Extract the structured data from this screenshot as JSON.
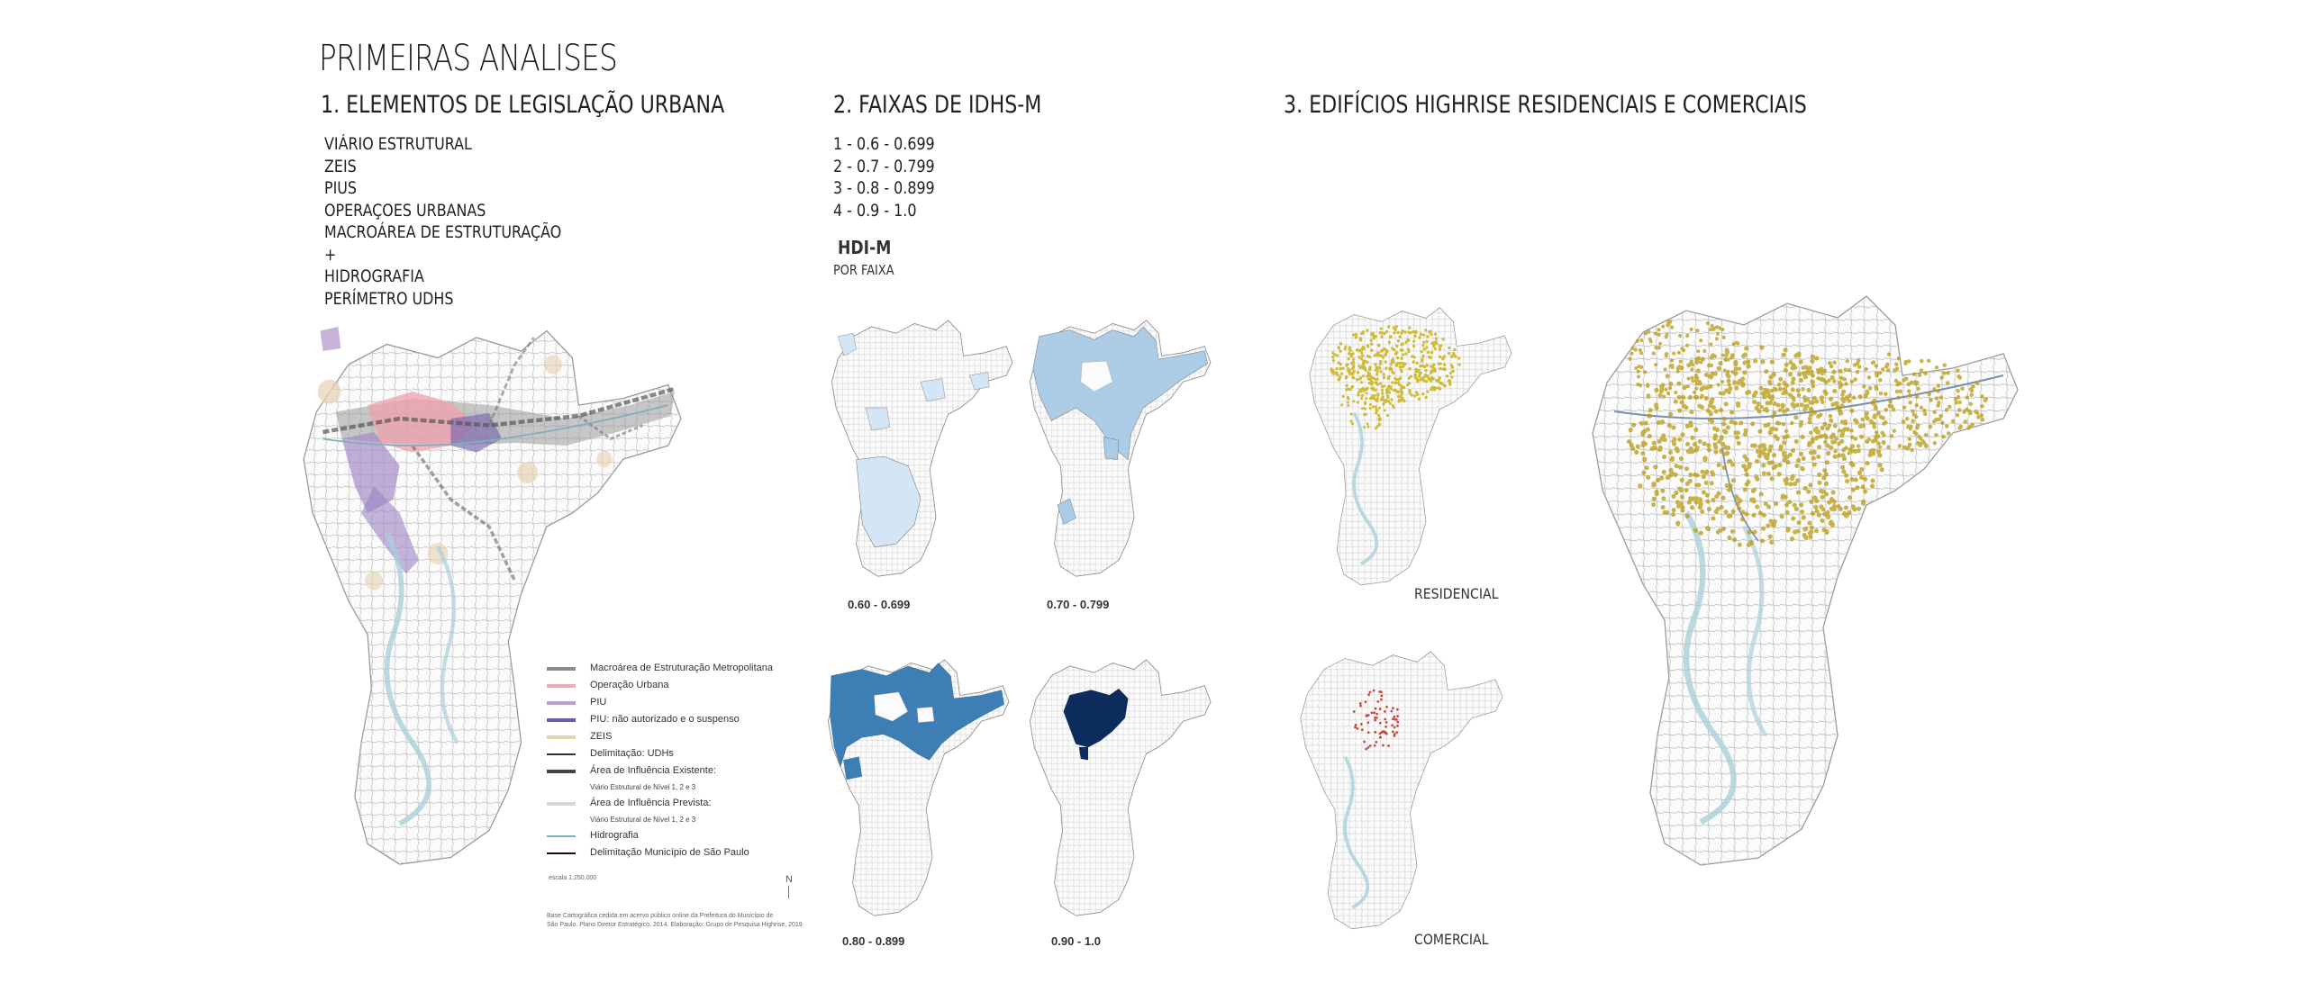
{
  "title": "PRIMEIRAS ANALISES",
  "section1": {
    "heading": "1. ELEMENTOS DE LEGISLAÇÃO URBANA",
    "items": [
      "VIÁRIO ESTRUTURAL",
      "ZEIS",
      "PIUS",
      "OPERAÇOES URBANAS",
      "MACROÁREA DE ESTRUTURAÇÃO",
      "+",
      "HIDROGRAFIA",
      "PERÍMETRO UDHS"
    ],
    "legend": [
      {
        "label": "Macroárea de Estruturação Metropolitana",
        "color": "#8c8c8c",
        "style": "bar"
      },
      {
        "label": "Operação Urbana",
        "color": "#f2a9b3",
        "style": "bar"
      },
      {
        "label": "PIU",
        "color": "#b9a0d0",
        "style": "bar"
      },
      {
        "label": "PIU: não autorizado e o suspenso",
        "color": "#6b5aa8",
        "style": "bar"
      },
      {
        "label": "ZEIS",
        "color": "#e6d2b3",
        "style": "bar"
      },
      {
        "label": "Delimitação: UDHs",
        "color": "#333333",
        "style": "line"
      },
      {
        "label": "Área de Influência Existente:",
        "color": "#444444",
        "style": "bar"
      },
      {
        "label": "Viário Estrutural de Nível 1, 2 e 3",
        "color": "",
        "style": "small"
      },
      {
        "label": "Área de Influência Prevista:",
        "color": "#d8d8d8",
        "style": "bar"
      },
      {
        "label": "Viário Estrutural de Nível 1, 2 e 3",
        "color": "",
        "style": "small"
      },
      {
        "label": "Hidrografia",
        "color": "#7fb0b8",
        "style": "line"
      },
      {
        "label": "Delimitação Município de São Paulo",
        "color": "#111111",
        "style": "line"
      }
    ],
    "scale_note": "escala 1:250.000",
    "north": "N",
    "source_note_1": "Base Cartográfica cedida em acervo público online da Prefeitura do Município de",
    "source_note_2": "São Paulo. Plano Diretor Estratégico, 2014. Elaboração: Grupo de Pesquisa Highrise, 2019"
  },
  "section2": {
    "heading": "2. FAIXAS DE IDHS-M",
    "items": [
      "1 - 0.6 - 0.699",
      "2 - 0.7 - 0.799",
      "3 - 0.8 - 0.899",
      "4 - 0.9 - 1.0"
    ],
    "hdi_title": "HDI-M",
    "hdi_sub": "POR FAIXA",
    "maps": [
      {
        "caption": "0.60 - 0.699",
        "fill": "#d4e6f6"
      },
      {
        "caption": "0.70 - 0.799",
        "fill": "#a9cbe6"
      },
      {
        "caption": "0.80 - 0.899",
        "fill": "#3d7fb5"
      },
      {
        "caption": "0.90 - 1.0",
        "fill": "#0d2c5e"
      }
    ]
  },
  "section3": {
    "heading": "3. EDIFÍCIOS HIGHRISE RESIDENCIAIS E COMERCIAIS",
    "map_labels": {
      "residential": "RESIDENCIAL",
      "commercial": "COMERCIAL"
    },
    "colors": {
      "residential": "#c9b218",
      "commercial": "#c0392b",
      "hydro": "#a9d0da"
    }
  }
}
